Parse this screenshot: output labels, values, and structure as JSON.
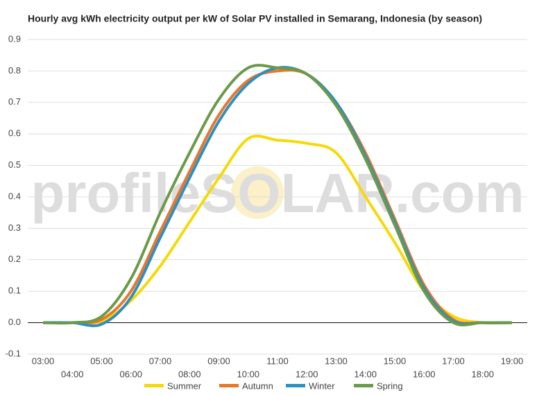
{
  "chart_data": {
    "type": "line",
    "title": "Hourly avg kWh electricity output per kW of Solar PV installed in Semarang, Indonesia (by season)",
    "watermark": "profileSOLAR.com",
    "categories": [
      "03:00",
      "04:00",
      "05:00",
      "06:00",
      "07:00",
      "08:00",
      "09:00",
      "10:00",
      "11:00",
      "12:00",
      "13:00",
      "14:00",
      "15:00",
      "16:00",
      "17:00",
      "18:00",
      "19:00"
    ],
    "series": [
      {
        "name": "Summer",
        "color": "#f5d90a",
        "values": [
          0,
          0,
          0.005,
          0.07,
          0.18,
          0.32,
          0.46,
          0.585,
          0.58,
          0.57,
          0.54,
          0.4,
          0.255,
          0.1,
          0.02,
          0,
          0
        ]
      },
      {
        "name": "Autumn",
        "color": "#e8762c",
        "values": [
          0,
          0,
          0.01,
          0.1,
          0.29,
          0.48,
          0.66,
          0.77,
          0.8,
          0.79,
          0.7,
          0.54,
          0.33,
          0.12,
          0.01,
          0,
          0
        ]
      },
      {
        "name": "Winter",
        "color": "#2e8fc0",
        "values": [
          0,
          0,
          -0.005,
          0.08,
          0.27,
          0.46,
          0.64,
          0.76,
          0.81,
          0.79,
          0.7,
          0.53,
          0.32,
          0.11,
          0.005,
          0,
          0
        ]
      },
      {
        "name": "Spring",
        "color": "#6a9a4a",
        "values": [
          0,
          0,
          0.02,
          0.14,
          0.35,
          0.54,
          0.71,
          0.81,
          0.81,
          0.79,
          0.69,
          0.52,
          0.31,
          0.1,
          0,
          0,
          0
        ]
      }
    ],
    "ylim": [
      -0.1,
      0.9
    ],
    "yticks": [
      -0.1,
      {
        "value": 0,
        "label": "0.0"
      },
      0.1,
      0.2,
      0.3,
      0.4,
      0.5,
      0.6,
      0.7,
      0.8,
      0.9
    ],
    "grid": true,
    "legend": "bottom"
  }
}
